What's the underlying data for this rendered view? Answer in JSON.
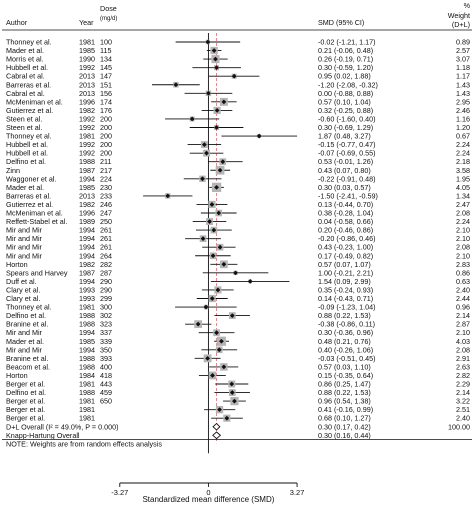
{
  "chart_data": {
    "type": "forest",
    "headers": {
      "author": "Author",
      "year": "Year",
      "dose": "Dose",
      "dose_unit": "(mg/d)",
      "smd": "SMD (95% CI)",
      "weight": "%",
      "weight2": "Weight",
      "weight3": "(D+L)"
    },
    "xlabel": "Standardized mean difference (SMD)",
    "xlim": [
      -4.0,
      4.3
    ],
    "x_ticks": [
      {
        "value": -3.27,
        "label": "-3.27"
      },
      {
        "value": 0,
        "label": "0"
      },
      {
        "value": 3.27,
        "label": "3.27"
      }
    ],
    "overall_line_x": 0.3,
    "rows": [
      {
        "author": "Thonney et al.",
        "year": "1981",
        "dose": "100",
        "smd": -0.02,
        "lo": -1.21,
        "hi": 1.17,
        "ci_text": "-0.02 (-1.21, 1.17)",
        "weight": "0.89",
        "w": 0.89
      },
      {
        "author": "Mader et al.",
        "year": "1985",
        "dose": "115",
        "smd": 0.21,
        "lo": -0.06,
        "hi": 0.48,
        "ci_text": "0.21 (-0.06, 0.48)",
        "weight": "2.57",
        "w": 2.57
      },
      {
        "author": "Morris et al.",
        "year": "1990",
        "dose": "134",
        "smd": 0.26,
        "lo": -0.19,
        "hi": 0.71,
        "ci_text": "0.26 (-0.19, 0.71)",
        "weight": "3.07",
        "w": 3.07
      },
      {
        "author": "Hubbell et al.",
        "year": "1992",
        "dose": "145",
        "smd": 0.3,
        "lo": -0.59,
        "hi": 1.2,
        "ci_text": "0.30 (-0.59, 1.20)",
        "weight": "1.18",
        "w": 1.18
      },
      {
        "author": "Cabral et al.",
        "year": "2013",
        "dose": "147",
        "smd": 0.95,
        "lo": 0.02,
        "hi": 1.88,
        "ci_text": "0.95 (0.02, 1.88)",
        "weight": "1.17",
        "w": 1.17
      },
      {
        "author": "Barreras et al.",
        "year": "2013",
        "dose": "151",
        "smd": -1.2,
        "lo": -2.08,
        "hi": -0.32,
        "ci_text": "-1.20 (-2.08, -0.32)",
        "weight": "1.43",
        "w": 1.43
      },
      {
        "author": "Cabral et al.",
        "year": "2013",
        "dose": "156",
        "smd": 0.0,
        "lo": -0.88,
        "hi": 0.88,
        "ci_text": "0.00 (-0.88, 0.88)",
        "weight": "1.43",
        "w": 1.43
      },
      {
        "author": "McMeniman et al.",
        "year": "1996",
        "dose": "174",
        "smd": 0.57,
        "lo": 0.1,
        "hi": 1.04,
        "ci_text": "0.57 (0.10, 1.04)",
        "weight": "2.95",
        "w": 2.95
      },
      {
        "author": "Gutierrez et al.",
        "year": "1982",
        "dose": "176",
        "smd": 0.32,
        "lo": -0.25,
        "hi": 0.88,
        "ci_text": "0.32 (-0.25, 0.88)",
        "weight": "2.46",
        "w": 2.46
      },
      {
        "author": "Steen et al.",
        "year": "1992",
        "dose": "200",
        "smd": -0.6,
        "lo": -1.6,
        "hi": 0.4,
        "ci_text": "-0.60 (-1.60, 0.40)",
        "weight": "1.16",
        "w": 1.16
      },
      {
        "author": "Steen et al.",
        "year": "1992",
        "dose": "200",
        "smd": 0.3,
        "lo": -0.69,
        "hi": 1.29,
        "ci_text": "0.30 (-0.69, 1.29)",
        "weight": "1.20",
        "w": 1.2
      },
      {
        "author": "Thonney et al.",
        "year": "1981",
        "dose": "200",
        "smd": 1.87,
        "lo": 0.48,
        "hi": 3.27,
        "ci_text": "1.87 (0.48, 3.27)",
        "weight": "0.67",
        "w": 0.67
      },
      {
        "author": "Hubbell et al.",
        "year": "1992",
        "dose": "200",
        "smd": -0.15,
        "lo": -0.77,
        "hi": 0.47,
        "ci_text": "-0.15 (-0.77, 0.47)",
        "weight": "2.24",
        "w": 2.24
      },
      {
        "author": "Hubbell et al.",
        "year": "1992",
        "dose": "200",
        "smd": -0.07,
        "lo": -0.69,
        "hi": 0.55,
        "ci_text": "-0.07 (-0.69, 0.55)",
        "weight": "2.24",
        "w": 2.24
      },
      {
        "author": "Delfino et al.",
        "year": "1988",
        "dose": "211",
        "smd": 0.53,
        "lo": -0.01,
        "hi": 1.26,
        "ci_text": "0.53 (-0.01, 1.26)",
        "weight": "2.18",
        "w": 2.18
      },
      {
        "author": "Zinn",
        "year": "1987",
        "dose": "217",
        "smd": 0.43,
        "lo": 0.07,
        "hi": 0.8,
        "ci_text": "0.43 (0.07, 0.80)",
        "weight": "3.58",
        "w": 3.58
      },
      {
        "author": "Waggoner et al.",
        "year": "1994",
        "dose": "224",
        "smd": -0.22,
        "lo": -0.91,
        "hi": 0.48,
        "ci_text": "-0.22 (-0.91, 0.48)",
        "weight": "1.95",
        "w": 1.95
      },
      {
        "author": "Mader et al.",
        "year": "1985",
        "dose": "230",
        "smd": 0.3,
        "lo": 0.03,
        "hi": 0.57,
        "ci_text": "0.30 (0.03, 0.57)",
        "weight": "4.05",
        "w": 4.05
      },
      {
        "author": "Barreras et al.",
        "year": "2013",
        "dose": "233",
        "smd": -1.5,
        "lo": -2.41,
        "hi": -0.59,
        "ci_text": "-1.50 (-2.41, -0.59)",
        "weight": "1.34",
        "w": 1.34
      },
      {
        "author": "Gutierrez et al.",
        "year": "1982",
        "dose": "246",
        "smd": 0.13,
        "lo": -0.44,
        "hi": 0.7,
        "ci_text": "0.13 (-0.44, 0.70)",
        "weight": "2.47",
        "w": 2.47
      },
      {
        "author": "McMeniman et al.",
        "year": "1996",
        "dose": "247",
        "smd": 0.38,
        "lo": -0.28,
        "hi": 1.04,
        "ci_text": "0.38 (-0.28, 1.04)",
        "weight": "2.08",
        "w": 2.08
      },
      {
        "author": "Reffett-Stabel et al.",
        "year": "1989",
        "dose": "250",
        "smd": 0.04,
        "lo": -0.58,
        "hi": 0.66,
        "ci_text": "0.04 (-0.58, 0.66)",
        "weight": "2.24",
        "w": 2.24
      },
      {
        "author": "Mir and Mir",
        "year": "1994",
        "dose": "261",
        "smd": 0.2,
        "lo": -0.46,
        "hi": 0.86,
        "ci_text": "0.20 (-0.46, 0.86)",
        "weight": "2.10",
        "w": 2.1
      },
      {
        "author": "Mir and Mir",
        "year": "1994",
        "dose": "261",
        "smd": -0.2,
        "lo": -0.86,
        "hi": 0.46,
        "ci_text": "-0.20 (-0.86, 0.46)",
        "weight": "2.10",
        "w": 2.1
      },
      {
        "author": "Mir and Mir",
        "year": "1994",
        "dose": "261",
        "smd": 0.43,
        "lo": -0.23,
        "hi": 1.0,
        "ci_text": "0.43 (-0.23, 1.00)",
        "weight": "2.08",
        "w": 2.08
      },
      {
        "author": "Mir and Mir",
        "year": "1994",
        "dose": "264",
        "smd": 0.17,
        "lo": -0.49,
        "hi": 0.82,
        "ci_text": "0.17 (-0.49, 0.82)",
        "weight": "2.10",
        "w": 2.1
      },
      {
        "author": "Horton",
        "year": "1982",
        "dose": "282",
        "smd": 0.57,
        "lo": 0.07,
        "hi": 1.07,
        "ci_text": "0.57 (0.07, 1.07)",
        "weight": "2.83",
        "w": 2.83
      },
      {
        "author": "Spears and Harvey",
        "year": "1987",
        "dose": "287",
        "smd": 1.0,
        "lo": -0.21,
        "hi": 2.21,
        "ci_text": "1.00 (-0.21, 2.21)",
        "weight": "0.86",
        "w": 0.86
      },
      {
        "author": "Duff et al.",
        "year": "1994",
        "dose": "290",
        "smd": 1.54,
        "lo": 0.09,
        "hi": 2.99,
        "ci_text": "1.54 (0.09, 2.99)",
        "weight": "0.63",
        "w": 0.63
      },
      {
        "author": "Clary et al.",
        "year": "1993",
        "dose": "290",
        "smd": 0.35,
        "lo": -0.24,
        "hi": 0.93,
        "ci_text": "0.35 (-0.24, 0.93)",
        "weight": "2.40",
        "w": 2.4
      },
      {
        "author": "Clary et al.",
        "year": "1993",
        "dose": "299",
        "smd": 0.14,
        "lo": -0.43,
        "hi": 0.71,
        "ci_text": "0.14 (-0.43, 0.71)",
        "weight": "2.44",
        "w": 2.44
      },
      {
        "author": "Thonney et al.",
        "year": "1981",
        "dose": "300",
        "smd": -0.09,
        "lo": -1.23,
        "hi": 1.04,
        "ci_text": "-0.09 (-1.23, 1.04)",
        "weight": "0.96",
        "w": 0.96
      },
      {
        "author": "Delfino et al.",
        "year": "1988",
        "dose": "302",
        "smd": 0.88,
        "lo": 0.22,
        "hi": 1.53,
        "ci_text": "0.88 (0.22, 1.53)",
        "weight": "2.14",
        "w": 2.14
      },
      {
        "author": "Branine et al.",
        "year": "1988",
        "dose": "323",
        "smd": -0.38,
        "lo": -0.86,
        "hi": 0.11,
        "ci_text": "-0.38 (-0.86, 0.11)",
        "weight": "2.87",
        "w": 2.87
      },
      {
        "author": "Mir and Mir",
        "year": "1994",
        "dose": "337",
        "smd": 0.3,
        "lo": -0.36,
        "hi": 0.96,
        "ci_text": "0.30 (-0.36, 0.96)",
        "weight": "2.10",
        "w": 2.1
      },
      {
        "author": "Mader et al.",
        "year": "1985",
        "dose": "339",
        "smd": 0.48,
        "lo": 0.21,
        "hi": 0.76,
        "ci_text": "0.48 (0.21, 0.76)",
        "weight": "4.03",
        "w": 4.03
      },
      {
        "author": "Mir and Mir",
        "year": "1994",
        "dose": "350",
        "smd": 0.4,
        "lo": -0.26,
        "hi": 1.06,
        "ci_text": "0.40 (-0.26, 1.06)",
        "weight": "2.08",
        "w": 2.08
      },
      {
        "author": "Branine et al.",
        "year": "1988",
        "dose": "393",
        "smd": -0.03,
        "lo": -0.51,
        "hi": 0.45,
        "ci_text": "-0.03 (-0.51, 0.45)",
        "weight": "2.91",
        "w": 2.91
      },
      {
        "author": "Beacom et al.",
        "year": "1988",
        "dose": "400",
        "smd": 0.57,
        "lo": 0.03,
        "hi": 1.1,
        "ci_text": "0.57 (0.03, 1.10)",
        "weight": "2.63",
        "w": 2.63
      },
      {
        "author": "Horton",
        "year": "1984",
        "dose": "418",
        "smd": 0.15,
        "lo": -0.35,
        "hi": 0.64,
        "ci_text": "0.15 (-0.35, 0.64)",
        "weight": "2.82",
        "w": 2.82
      },
      {
        "author": "Berger et al.",
        "year": "1981",
        "dose": "443",
        "smd": 0.86,
        "lo": 0.25,
        "hi": 1.47,
        "ci_text": "0.86 (0.25, 1.47)",
        "weight": "2.29",
        "w": 2.29
      },
      {
        "author": "Delfino et al.",
        "year": "1988",
        "dose": "459",
        "smd": 0.88,
        "lo": 0.22,
        "hi": 1.53,
        "ci_text": "0.88 (0.22, 1.53)",
        "weight": "2.14",
        "w": 2.14
      },
      {
        "author": "Berger et al.",
        "year": "1981",
        "dose": "650",
        "smd": 0.96,
        "lo": 0.54,
        "hi": 1.38,
        "ci_text": "0.96 (0.54, 1.38)",
        "weight": "3.22",
        "w": 3.22
      },
      {
        "author": "Berger et al.",
        "year": "1981",
        "dose": "",
        "smd": 0.41,
        "lo": -0.16,
        "hi": 0.99,
        "ci_text": "0.41 (-0.16, 0.99)",
        "weight": "2.51",
        "w": 2.51
      },
      {
        "author": "Berger et al.",
        "year": "1981",
        "dose": "",
        "smd": 0.68,
        "lo": 0.1,
        "hi": 1.27,
        "ci_text": "0.68 (0.10, 1.27)",
        "weight": "2.40",
        "w": 2.4
      }
    ],
    "summaries": [
      {
        "label": "D+L Overall (I² = 49.0%, P = 0.000)",
        "smd": 0.3,
        "lo": 0.17,
        "hi": 0.42,
        "ci_text": "0.30 (0.17, 0.42)",
        "weight": "100.00"
      },
      {
        "label": "Knapp-Hartung Overall",
        "smd": 0.3,
        "lo": 0.16,
        "hi": 0.44,
        "ci_text": "0.30 (0.16, 0.44)",
        "weight": ""
      }
    ],
    "note": "NOTE: Weights are from random effects analysis"
  }
}
